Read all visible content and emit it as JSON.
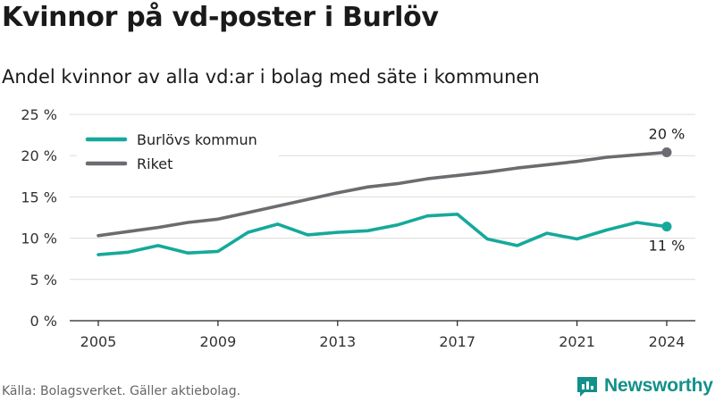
{
  "title": "Kvinnor på vd-poster i Burlöv",
  "subtitle": "Andel kvinnor av alla vd:ar i bolag med säte i kommunen",
  "source": "Källa: Bolagsverket. Gäller aktiebolag.",
  "brand": {
    "name": "Newsworthy",
    "icon": "newsworthy-logo-icon"
  },
  "chart_data": {
    "type": "line",
    "x": [
      2005,
      2006,
      2007,
      2008,
      2009,
      2010,
      2011,
      2012,
      2013,
      2014,
      2015,
      2016,
      2017,
      2018,
      2019,
      2020,
      2021,
      2022,
      2023,
      2024
    ],
    "x_ticks": [
      "2005",
      "2009",
      "2013",
      "2017",
      "2021",
      "2024"
    ],
    "y_ticks": [
      "0 %",
      "5 %",
      "10 %",
      "15 %",
      "20 %",
      "25 %"
    ],
    "ylim": [
      0,
      25
    ],
    "xlim": [
      2005,
      2024
    ],
    "grid": true,
    "legend": "top-left",
    "series": [
      {
        "name": "Burlövs kommun",
        "color": "#16a99a",
        "values": [
          8.0,
          8.3,
          9.1,
          8.2,
          8.4,
          10.7,
          11.7,
          10.4,
          10.7,
          10.9,
          11.6,
          12.7,
          12.9,
          9.9,
          9.1,
          10.6,
          9.9,
          11.0,
          11.9,
          11.4
        ],
        "end_label": "11 %"
      },
      {
        "name": "Riket",
        "color": "#6c6c70",
        "values": [
          10.3,
          10.8,
          11.3,
          11.9,
          12.3,
          13.1,
          13.9,
          14.7,
          15.5,
          16.2,
          16.6,
          17.2,
          17.6,
          18.0,
          18.5,
          18.9,
          19.3,
          19.8,
          20.1,
          20.4
        ],
        "end_label": "20 %"
      }
    ]
  }
}
